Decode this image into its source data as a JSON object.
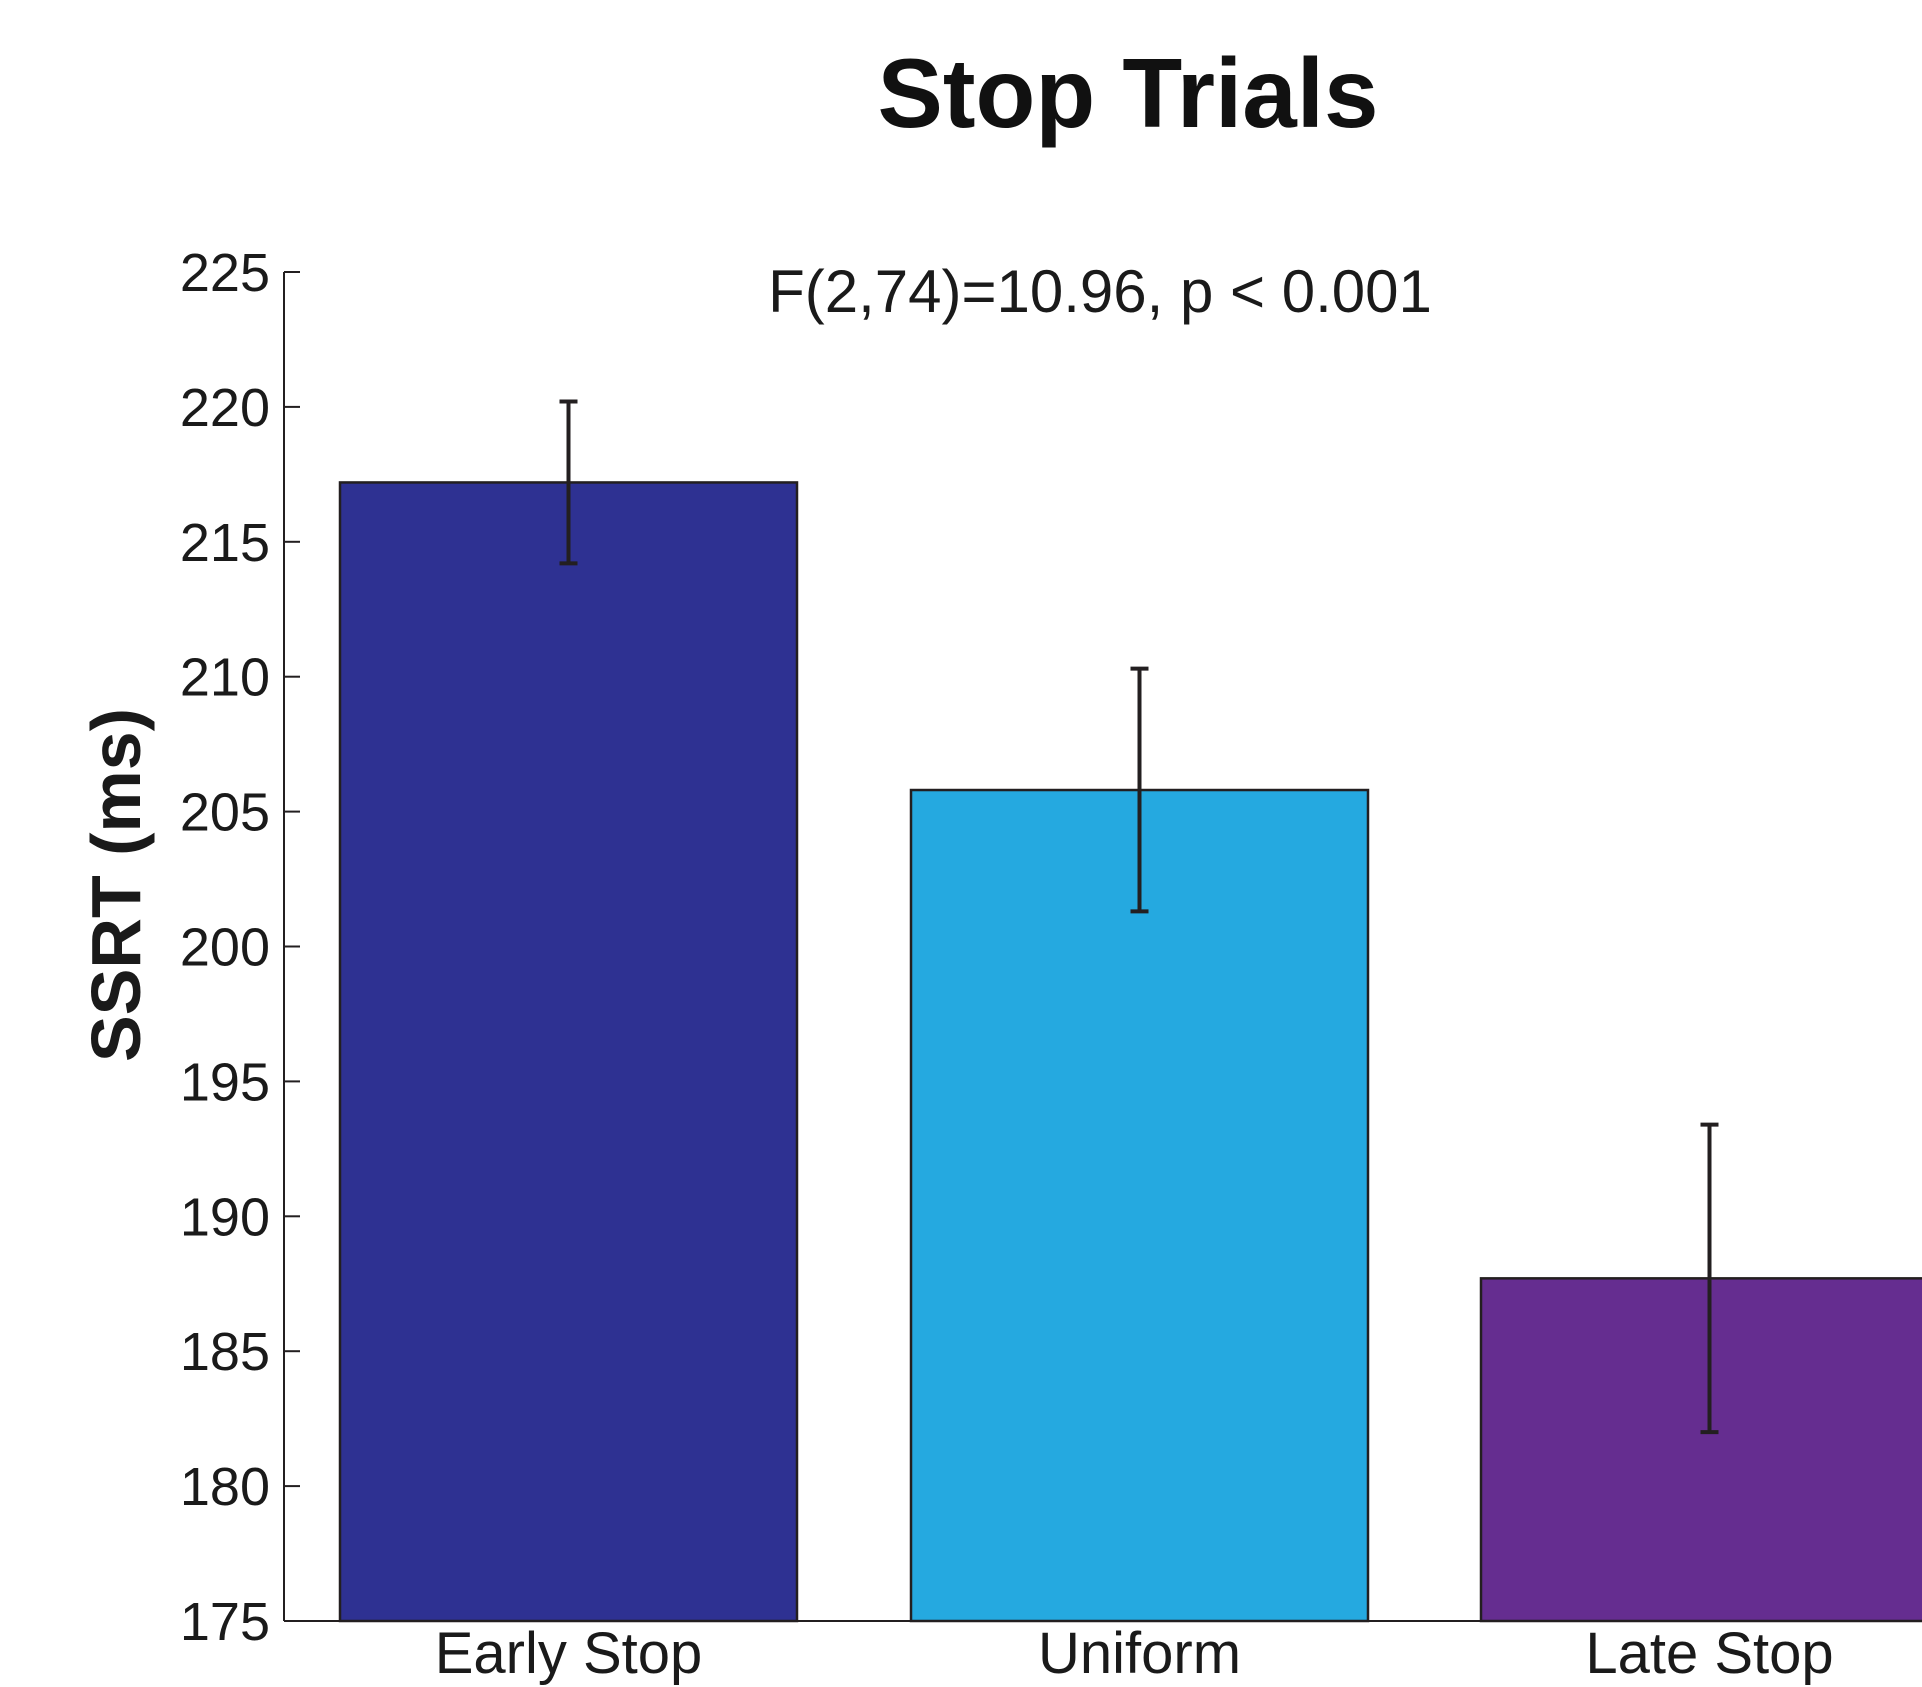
{
  "chart_data": {
    "type": "bar",
    "title": "Stop Trials",
    "annotation": "F(2,74)=10.96, p < 0.001",
    "xlabel": "",
    "ylabel": "SSRT (ms)",
    "ylim": [
      175,
      225
    ],
    "yticks": [
      175,
      180,
      185,
      190,
      195,
      200,
      205,
      210,
      215,
      220,
      225
    ],
    "categories": [
      "Early Stop",
      "Uniform",
      "Late Stop"
    ],
    "values": [
      217.2,
      205.8,
      187.7
    ],
    "errors": [
      3.0,
      4.5,
      5.7
    ],
    "colors": [
      "#2e3192",
      "#25a9e0",
      "#652d90"
    ],
    "edge_color": "#231f20",
    "grid": false,
    "legend": "none"
  }
}
